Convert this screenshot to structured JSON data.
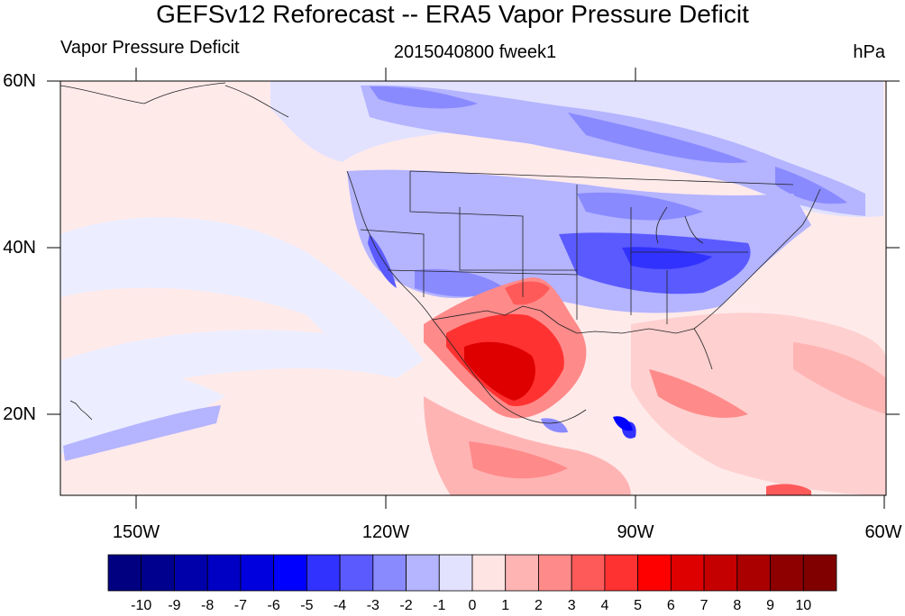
{
  "title": "GEFSv12 Reforecast -- ERA5 Vapor Pressure Deficit",
  "subtitle_left": "Vapor Pressure Deficit",
  "subtitle_center": "2015040800 fweek1",
  "subtitle_right": "hPa",
  "lat_labels": [
    "60N",
    "40N",
    "20N"
  ],
  "lon_labels": [
    "150W",
    "120W",
    "90W",
    "60W"
  ],
  "colorbar": {
    "labels": [
      "-10",
      "-9",
      "-8",
      "-7",
      "-6",
      "-5",
      "-4",
      "-3",
      "-2",
      "-1",
      "0",
      "1",
      "2",
      "3",
      "4",
      "5",
      "6",
      "7",
      "8",
      "9",
      "10"
    ],
    "colors": [
      "#000080",
      "#00008e",
      "#0000aa",
      "#0000c4",
      "#0000de",
      "#0000ff",
      "#3232ff",
      "#5a5aff",
      "#8a8aff",
      "#b4b4ff",
      "#e2e2ff",
      "#ffe4e4",
      "#ffb4b4",
      "#ff8a8a",
      "#ff5a5a",
      "#ff3232",
      "#ff0000",
      "#de0000",
      "#c40000",
      "#aa0000",
      "#8e0000",
      "#800000"
    ]
  },
  "map": {
    "background_color": "#ffeaea",
    "lon_range": [
      "160W",
      "60W"
    ],
    "lat_range": [
      "10N",
      "60N"
    ]
  }
}
